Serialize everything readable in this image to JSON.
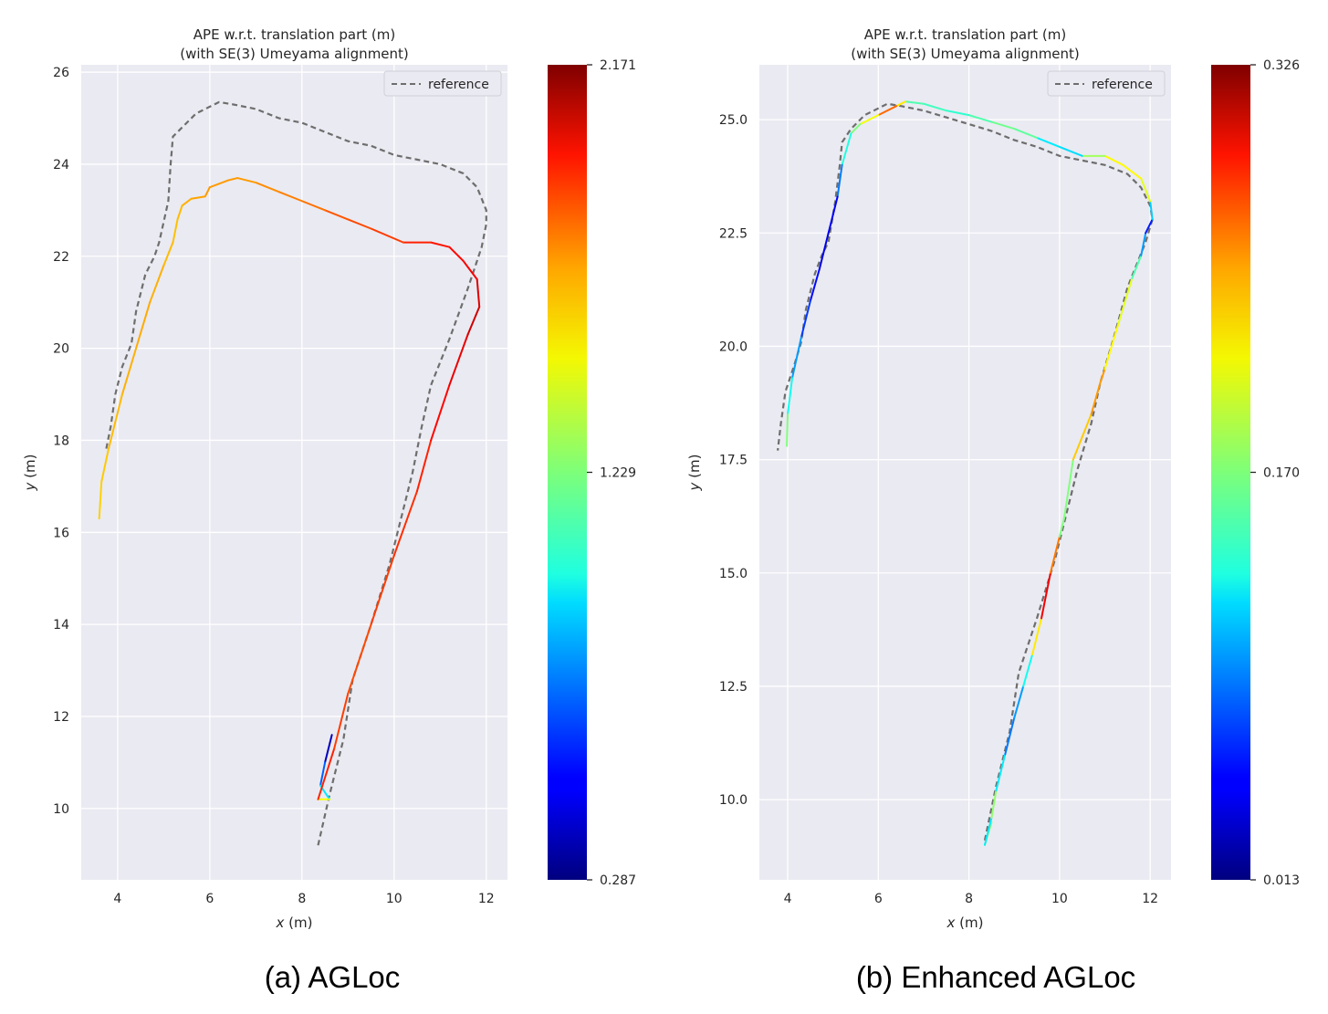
{
  "captions": [
    "(a) AGLoc",
    "(b) Enhanced AGLoc"
  ],
  "chart_data": [
    {
      "type": "line",
      "title": "APE w.r.t. translation part (m)\n(with SE(3) Umeyama alignment)",
      "xlabel": "x (m)",
      "ylabel": "y (m)",
      "xlim": [
        3.21,
        12.46
      ],
      "ylim": [
        8.45,
        26.16
      ],
      "xticks": [
        4,
        6,
        8,
        10,
        12
      ],
      "yticks": [
        10,
        12,
        14,
        16,
        18,
        20,
        22,
        24,
        26
      ],
      "ytick_decimals": 0,
      "grid": true,
      "legend": {
        "entries": [
          "reference"
        ],
        "placement": "top-right"
      },
      "colorbar": {
        "min": 0.287,
        "max": 2.171,
        "ticks": [
          "2.171",
          "1.229",
          "0.287"
        ],
        "colormap": "jet"
      },
      "reference": [
        [
          8.35,
          9.2
        ],
        [
          8.6,
          10.3
        ],
        [
          8.9,
          11.5
        ],
        [
          9.1,
          12.8
        ],
        [
          9.5,
          14
        ],
        [
          9.9,
          15.3
        ],
        [
          10.1,
          16.1
        ],
        [
          10.4,
          17.3
        ],
        [
          10.6,
          18.3
        ],
        [
          10.8,
          19.2
        ],
        [
          11.2,
          20.2
        ],
        [
          11.6,
          21.3
        ],
        [
          11.9,
          22.2
        ],
        [
          12.0,
          22.7
        ],
        [
          12.0,
          23.0
        ],
        [
          11.8,
          23.5
        ],
        [
          11.5,
          23.8
        ],
        [
          11.0,
          24.0
        ],
        [
          10.5,
          24.1
        ],
        [
          10.0,
          24.2
        ],
        [
          9.5,
          24.4
        ],
        [
          9.0,
          24.5
        ],
        [
          8.5,
          24.7
        ],
        [
          8.0,
          24.9
        ],
        [
          7.5,
          25.0
        ],
        [
          7.0,
          25.2
        ],
        [
          6.5,
          25.3
        ],
        [
          6.2,
          25.35
        ],
        [
          6.0,
          25.25
        ],
        [
          5.7,
          25.1
        ],
        [
          5.4,
          24.8
        ],
        [
          5.2,
          24.6
        ],
        [
          5.15,
          24.0
        ],
        [
          5.1,
          23.2
        ],
        [
          4.9,
          22.3
        ],
        [
          4.8,
          22.0
        ],
        [
          4.6,
          21.6
        ],
        [
          4.5,
          21.2
        ],
        [
          4.4,
          20.8
        ],
        [
          4.3,
          20.1
        ],
        [
          4.1,
          19.6
        ],
        [
          3.95,
          19.0
        ],
        [
          3.85,
          18.3
        ],
        [
          3.75,
          17.8
        ]
      ],
      "estimate": [
        [
          8.65,
          11.6,
          0.3
        ],
        [
          8.5,
          11.0,
          0.5
        ],
        [
          8.4,
          10.5,
          0.9
        ],
        [
          8.6,
          10.2,
          1.0
        ],
        [
          8.35,
          10.2,
          1.9
        ],
        [
          8.7,
          11.3,
          1.85
        ],
        [
          9.0,
          12.5,
          1.8
        ],
        [
          9.5,
          14.0,
          1.8
        ],
        [
          10.0,
          15.5,
          1.85
        ],
        [
          10.5,
          16.9,
          1.85
        ],
        [
          10.8,
          18.0,
          1.9
        ],
        [
          11.2,
          19.2,
          1.95
        ],
        [
          11.6,
          20.3,
          2.0
        ],
        [
          11.85,
          20.9,
          2.05
        ],
        [
          11.8,
          21.5,
          1.95
        ],
        [
          11.5,
          21.9,
          1.95
        ],
        [
          11.2,
          22.2,
          1.9
        ],
        [
          10.8,
          22.3,
          1.9
        ],
        [
          10.2,
          22.3,
          1.85
        ],
        [
          9.5,
          22.6,
          1.8
        ],
        [
          9.0,
          22.8,
          1.8
        ],
        [
          8.5,
          23.0,
          1.75
        ],
        [
          8.0,
          23.2,
          1.7
        ],
        [
          7.5,
          23.4,
          1.7
        ],
        [
          7.0,
          23.6,
          1.65
        ],
        [
          6.6,
          23.7,
          1.65
        ],
        [
          6.4,
          23.65,
          1.65
        ],
        [
          6.0,
          23.5,
          1.65
        ],
        [
          5.9,
          23.3,
          1.65
        ],
        [
          5.6,
          23.25,
          1.62
        ],
        [
          5.4,
          23.1,
          1.6
        ],
        [
          5.3,
          22.8,
          1.58
        ],
        [
          5.2,
          22.3,
          1.58
        ],
        [
          5.0,
          21.8,
          1.6
        ],
        [
          4.7,
          21.0,
          1.62
        ],
        [
          4.4,
          20.0,
          1.62
        ],
        [
          4.1,
          19.0,
          1.6
        ],
        [
          3.8,
          17.8,
          1.58
        ],
        [
          3.65,
          17.1,
          1.55
        ],
        [
          3.6,
          16.3,
          1.55
        ]
      ]
    },
    {
      "type": "line",
      "title": "APE w.r.t. translation part (m)\n(with SE(3) Umeyama alignment)",
      "xlabel": "x (m)",
      "ylabel": "y (m)",
      "xlim": [
        3.375,
        12.46
      ],
      "ylim": [
        8.23,
        26.21
      ],
      "xticks": [
        4,
        6,
        8,
        10,
        12
      ],
      "yticks": [
        10.0,
        12.5,
        15.0,
        17.5,
        20.0,
        22.5,
        25.0
      ],
      "ytick_decimals": 1,
      "grid": true,
      "legend": {
        "entries": [
          "reference"
        ],
        "placement": "top-right"
      },
      "colorbar": {
        "min": 0.013,
        "max": 0.326,
        "ticks": [
          "0.326",
          "0.170",
          "0.013"
        ],
        "colormap": "jet"
      },
      "reference": [
        [
          8.35,
          9.1
        ],
        [
          8.6,
          10.3
        ],
        [
          8.9,
          11.5
        ],
        [
          9.1,
          12.8
        ],
        [
          9.5,
          14
        ],
        [
          9.9,
          15.3
        ],
        [
          10.1,
          16.1
        ],
        [
          10.4,
          17.3
        ],
        [
          10.7,
          18.3
        ],
        [
          10.9,
          19.2
        ],
        [
          11.2,
          20.2
        ],
        [
          11.5,
          21.3
        ],
        [
          11.9,
          22.3
        ],
        [
          12.05,
          22.8
        ],
        [
          12.0,
          23.1
        ],
        [
          11.8,
          23.5
        ],
        [
          11.5,
          23.8
        ],
        [
          11.0,
          24.0
        ],
        [
          10.5,
          24.1
        ],
        [
          10.0,
          24.2
        ],
        [
          9.5,
          24.4
        ],
        [
          9.0,
          24.55
        ],
        [
          8.5,
          24.75
        ],
        [
          8.0,
          24.9
        ],
        [
          7.5,
          25.05
        ],
        [
          7.0,
          25.2
        ],
        [
          6.5,
          25.3
        ],
        [
          6.2,
          25.35
        ],
        [
          6.0,
          25.25
        ],
        [
          5.7,
          25.1
        ],
        [
          5.4,
          24.8
        ],
        [
          5.2,
          24.5
        ],
        [
          5.15,
          24.0
        ],
        [
          5.05,
          23.2
        ],
        [
          4.9,
          22.3
        ],
        [
          4.75,
          22.0
        ],
        [
          4.6,
          21.6
        ],
        [
          4.5,
          21.2
        ],
        [
          4.4,
          20.8
        ],
        [
          4.3,
          20.1
        ],
        [
          4.15,
          19.6
        ],
        [
          3.95,
          19.0
        ],
        [
          3.85,
          18.3
        ],
        [
          3.78,
          17.7
        ]
      ],
      "estimate": [
        [
          8.5,
          9.5,
          0.3
        ],
        [
          8.35,
          9.0,
          0.05
        ],
        [
          8.5,
          9.6,
          0.2
        ],
        [
          8.6,
          10.2,
          0.15
        ],
        [
          8.8,
          11.0,
          0.1
        ],
        [
          9.0,
          11.8,
          0.08
        ],
        [
          9.2,
          12.5,
          0.12
        ],
        [
          9.4,
          13.2,
          0.15
        ],
        [
          9.6,
          14.0,
          0.28
        ],
        [
          9.8,
          15.0,
          0.3
        ],
        [
          10.0,
          15.8,
          0.2
        ],
        [
          10.1,
          16.2,
          0.14
        ],
        [
          10.3,
          17.5,
          0.2
        ],
        [
          10.5,
          18.0,
          0.25
        ],
        [
          10.7,
          18.5,
          0.2
        ],
        [
          10.9,
          19.2,
          0.28
        ],
        [
          11.0,
          19.5,
          0.2
        ],
        [
          11.3,
          20.5,
          0.22
        ],
        [
          11.6,
          21.5,
          0.18
        ],
        [
          11.8,
          22.0,
          0.13
        ],
        [
          11.9,
          22.5,
          0.07
        ],
        [
          12.05,
          22.8,
          0.05
        ],
        [
          12.0,
          23.2,
          0.18
        ],
        [
          11.8,
          23.7,
          0.22
        ],
        [
          11.4,
          24.0,
          0.2
        ],
        [
          11.0,
          24.2,
          0.22
        ],
        [
          10.5,
          24.2,
          0.14
        ],
        [
          10.0,
          24.4,
          0.1
        ],
        [
          9.5,
          24.6,
          0.15
        ],
        [
          9.0,
          24.8,
          0.17
        ],
        [
          8.5,
          24.95,
          0.16
        ],
        [
          8.0,
          25.1,
          0.15
        ],
        [
          7.5,
          25.2,
          0.14
        ],
        [
          7.0,
          25.35,
          0.16
        ],
        [
          6.6,
          25.4,
          0.15
        ],
        [
          6.4,
          25.3,
          0.28
        ],
        [
          6.0,
          25.1,
          0.23
        ],
        [
          5.6,
          24.9,
          0.18
        ],
        [
          5.4,
          24.7,
          0.16
        ],
        [
          5.2,
          24.0,
          0.12
        ],
        [
          5.1,
          23.3,
          0.06
        ],
        [
          4.9,
          22.5,
          0.04
        ],
        [
          4.7,
          21.7,
          0.05
        ],
        [
          4.5,
          21.0,
          0.06
        ],
        [
          4.3,
          20.2,
          0.08
        ],
        [
          4.1,
          19.3,
          0.12
        ],
        [
          4.0,
          18.5,
          0.15
        ],
        [
          3.98,
          17.8,
          0.19
        ]
      ]
    }
  ]
}
